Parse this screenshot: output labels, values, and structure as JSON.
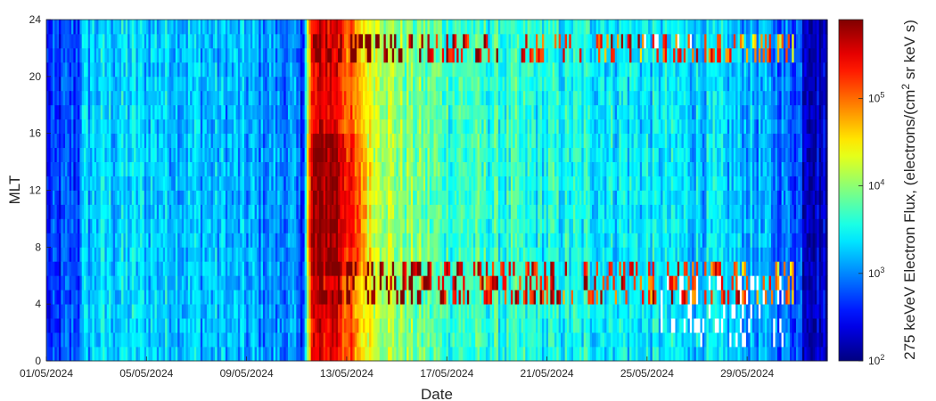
{
  "chart_data": {
    "type": "heatmap",
    "xlabel": "Date",
    "ylabel": "MLT",
    "colorbar_label": "275 keVeV Electron Flux, (electrons/(cm",
    "colorbar_label_sup": "2",
    "colorbar_label_tail": " sr keV s)",
    "x_tick_labels": [
      "01/05/2024",
      "05/05/2024",
      "09/05/2024",
      "13/05/2024",
      "17/05/2024",
      "21/05/2024",
      "25/05/2024",
      "29/05/2024"
    ],
    "x_tick_days": [
      0,
      4,
      8,
      12,
      16,
      20,
      24,
      28
    ],
    "xlim_days": [
      0,
      31.2
    ],
    "y_ticks": [
      0,
      4,
      8,
      12,
      16,
      20,
      24
    ],
    "ylim": [
      0,
      24
    ],
    "colorbar_ticks": [
      {
        "base": "10",
        "exp": "2",
        "log": 2
      },
      {
        "base": "10",
        "exp": "3",
        "log": 3
      },
      {
        "base": "10",
        "exp": "4",
        "log": 4
      },
      {
        "base": "10",
        "exp": "5",
        "log": 5
      }
    ],
    "color_log_range": [
      2,
      5.9
    ],
    "colormap": "jet",
    "time_resolution_hours": 2,
    "mlt_bins": 24,
    "flux_log_profile": [
      {
        "day": 0,
        "log_flux": 2.9
      },
      {
        "day": 2,
        "log_flux": 3.3
      },
      {
        "day": 5,
        "log_flux": 3.3
      },
      {
        "day": 8,
        "log_flux": 3.1
      },
      {
        "day": 9.8,
        "log_flux": 3.0
      },
      {
        "day": 10.2,
        "log_flux": 2.6
      },
      {
        "day": 10.6,
        "log_flux": 5.4
      },
      {
        "day": 11.5,
        "log_flux": 5.6
      },
      {
        "day": 12.5,
        "log_flux": 4.6
      },
      {
        "day": 14,
        "log_flux": 4.0
      },
      {
        "day": 16,
        "log_flux": 3.7
      },
      {
        "day": 20,
        "log_flux": 3.5
      },
      {
        "day": 24,
        "log_flux": 3.4
      },
      {
        "day": 28,
        "log_flux": 3.2
      },
      {
        "day": 31.2,
        "log_flux": 2.6
      }
    ],
    "high_flux_mlt_bands": [
      4,
      5,
      6,
      21,
      22
    ],
    "data_gaps_color": "#ffffff"
  }
}
